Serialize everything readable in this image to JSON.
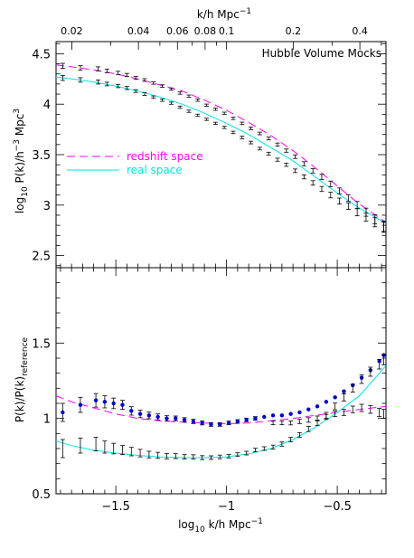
{
  "chart_data": [
    {
      "type": "scatter",
      "panel": "top",
      "title": "Hubble Volume Mocks",
      "xlabel": "log10 k/h Mpc^-1",
      "ylabel": "log10 P(k)/h^-3 Mpc^3",
      "xlim": [
        -1.77,
        -0.28
      ],
      "ylim": [
        2.38,
        4.62
      ],
      "yticks": [
        2.5,
        3,
        3.5,
        4,
        4.5
      ],
      "ytick_labels": [
        "2.5",
        "3",
        "3.5",
        "4",
        "4.5"
      ],
      "top_axis": {
        "label": "k/h Mpc^-1",
        "ticks": [
          0.02,
          0.04,
          0.06,
          0.08,
          0.1,
          0.2,
          0.4
        ],
        "tick_labels": [
          "0.02",
          "0.04",
          "0.06",
          "0.08",
          "0.1",
          "0.2",
          "0.4"
        ]
      },
      "legend": {
        "placement": "middle-left",
        "entries": [
          {
            "label": "redshift space",
            "color": "#ff00ff",
            "style": "dashed"
          },
          {
            "label": "real space",
            "color": "#00e5e5",
            "style": "solid"
          }
        ]
      },
      "series": [
        {
          "name": "redshift space",
          "kind": "model",
          "color": "#ff00ff",
          "x": [
            -1.77,
            -1.7,
            -1.6,
            -1.5,
            -1.4,
            -1.3,
            -1.2,
            -1.1,
            -1.0,
            -0.9,
            -0.8,
            -0.7,
            -0.6,
            -0.5,
            -0.4,
            -0.28
          ],
          "y": [
            4.39,
            4.37,
            4.34,
            4.3,
            4.25,
            4.19,
            4.13,
            4.04,
            3.94,
            3.82,
            3.69,
            3.54,
            3.37,
            3.19,
            3.01,
            2.83
          ]
        },
        {
          "name": "real space",
          "kind": "model",
          "color": "#00e5e5",
          "x": [
            -1.77,
            -1.7,
            -1.6,
            -1.5,
            -1.4,
            -1.3,
            -1.2,
            -1.1,
            -1.0,
            -0.9,
            -0.8,
            -0.7,
            -0.6,
            -0.5,
            -0.4,
            -0.28
          ],
          "y": [
            4.27,
            4.25,
            4.22,
            4.18,
            4.13,
            4.07,
            4.0,
            3.91,
            3.81,
            3.7,
            3.57,
            3.44,
            3.28,
            3.12,
            2.97,
            2.82
          ]
        },
        {
          "name": "mocks redshift space",
          "kind": "errorbars",
          "color": "#000000",
          "x": [
            -1.74,
            -1.66,
            -1.58,
            -1.54,
            -1.49,
            -1.45,
            -1.41,
            -1.37,
            -1.33,
            -1.29,
            -1.25,
            -1.21,
            -1.17,
            -1.13,
            -1.09,
            -1.05,
            -1.01,
            -0.97,
            -0.93,
            -0.89,
            -0.85,
            -0.81,
            -0.77,
            -0.73,
            -0.69,
            -0.65,
            -0.61,
            -0.57,
            -0.53,
            -0.49,
            -0.45,
            -0.41,
            -0.37,
            -0.33,
            -0.29
          ],
          "y": [
            4.38,
            4.36,
            4.35,
            4.33,
            4.31,
            4.29,
            4.26,
            4.24,
            4.21,
            4.18,
            4.15,
            4.11,
            4.08,
            4.04,
            3.99,
            3.95,
            3.91,
            3.86,
            3.81,
            3.76,
            3.71,
            3.66,
            3.6,
            3.54,
            3.48,
            3.41,
            3.34,
            3.28,
            3.21,
            3.14,
            3.07,
            3.0,
            2.93,
            2.86,
            2.79
          ],
          "err": [
            0.025,
            0.022,
            0.02,
            0.018,
            0.016,
            0.015,
            0.014,
            0.013,
            0.012,
            0.012,
            0.011,
            0.011,
            0.011,
            0.011,
            0.011,
            0.011,
            0.011,
            0.012,
            0.012,
            0.013,
            0.013,
            0.014,
            0.015,
            0.016,
            0.018,
            0.02,
            0.022,
            0.025,
            0.028,
            0.03,
            0.033,
            0.036,
            0.04,
            0.045,
            0.05
          ]
        },
        {
          "name": "mocks real space",
          "kind": "errorbars",
          "color": "#000000",
          "x": [
            -1.74,
            -1.66,
            -1.58,
            -1.54,
            -1.49,
            -1.45,
            -1.41,
            -1.37,
            -1.33,
            -1.29,
            -1.25,
            -1.21,
            -1.17,
            -1.13,
            -1.09,
            -1.05,
            -1.01,
            -0.97,
            -0.93,
            -0.89,
            -0.85,
            -0.81,
            -0.77,
            -0.73,
            -0.69,
            -0.65,
            -0.61,
            -0.57,
            -0.53,
            -0.49,
            -0.45,
            -0.41,
            -0.37,
            -0.33,
            -0.29
          ],
          "y": [
            4.26,
            4.24,
            4.22,
            4.2,
            4.18,
            4.16,
            4.13,
            4.1,
            4.07,
            4.04,
            4.01,
            3.97,
            3.93,
            3.89,
            3.85,
            3.81,
            3.77,
            3.72,
            3.67,
            3.62,
            3.56,
            3.51,
            3.45,
            3.4,
            3.34,
            3.28,
            3.22,
            3.16,
            3.1,
            3.04,
            2.99,
            2.93,
            2.88,
            2.83,
            2.78
          ],
          "err": [
            0.025,
            0.022,
            0.02,
            0.018,
            0.016,
            0.015,
            0.014,
            0.013,
            0.012,
            0.012,
            0.011,
            0.011,
            0.011,
            0.011,
            0.011,
            0.011,
            0.011,
            0.012,
            0.012,
            0.013,
            0.013,
            0.014,
            0.015,
            0.016,
            0.018,
            0.02,
            0.022,
            0.025,
            0.028,
            0.03,
            0.033,
            0.036,
            0.04,
            0.045,
            0.05
          ]
        }
      ]
    },
    {
      "type": "scatter",
      "panel": "bottom",
      "xlabel": "log10 k/h Mpc^-1",
      "ylabel": "P(k)/P(k)reference",
      "xlim": [
        -1.77,
        -0.28
      ],
      "ylim": [
        0.5,
        2.0
      ],
      "xticks": [
        -1.5,
        -1,
        -0.5
      ],
      "xtick_labels": [
        "−1.5",
        "−1",
        "−0.5"
      ],
      "yticks": [
        0.5,
        1,
        1.5
      ],
      "ytick_labels": [
        "0.5",
        "1",
        "1.5"
      ],
      "series": [
        {
          "name": "redshift space",
          "kind": "model",
          "color": "#ff00ff",
          "x": [
            -1.77,
            -1.7,
            -1.6,
            -1.5,
            -1.4,
            -1.3,
            -1.2,
            -1.1,
            -1.0,
            -0.9,
            -0.8,
            -0.7,
            -0.6,
            -0.5,
            -0.4,
            -0.28
          ],
          "y": [
            1.15,
            1.11,
            1.07,
            1.03,
            1.0,
            0.985,
            0.975,
            0.97,
            0.965,
            0.97,
            0.985,
            1.0,
            1.02,
            1.04,
            1.06,
            1.08
          ]
        },
        {
          "name": "real space",
          "kind": "model",
          "color": "#00e5e5",
          "x": [
            -1.77,
            -1.7,
            -1.6,
            -1.5,
            -1.4,
            -1.3,
            -1.2,
            -1.1,
            -1.0,
            -0.9,
            -0.8,
            -0.7,
            -0.6,
            -0.5,
            -0.4,
            -0.28
          ],
          "y": [
            0.85,
            0.82,
            0.79,
            0.77,
            0.755,
            0.745,
            0.74,
            0.74,
            0.745,
            0.765,
            0.8,
            0.86,
            0.94,
            1.04,
            1.15,
            1.35
          ]
        },
        {
          "name": "redshift space ratio",
          "kind": "points",
          "color": "#0000cc",
          "x": [
            -1.74,
            -1.66,
            -1.59,
            -1.55,
            -1.51,
            -1.47,
            -1.43,
            -1.39,
            -1.35,
            -1.31,
            -1.27,
            -1.23,
            -1.19,
            -1.15,
            -1.11,
            -1.07,
            -1.03,
            -0.99,
            -0.95,
            -0.91,
            -0.87,
            -0.83,
            -0.79,
            -0.75,
            -0.71,
            -0.67,
            -0.63,
            -0.59,
            -0.55,
            -0.51,
            -0.47,
            -0.43,
            -0.39,
            -0.35,
            -0.31,
            -0.29
          ],
          "y": [
            1.04,
            1.09,
            1.12,
            1.11,
            1.1,
            1.09,
            1.05,
            1.03,
            1.02,
            1.01,
            1.0,
            1.0,
            0.99,
            0.98,
            0.97,
            0.96,
            0.96,
            0.97,
            0.98,
            0.99,
            1.0,
            1.01,
            1.02,
            1.02,
            1.03,
            1.04,
            1.06,
            1.08,
            1.11,
            1.14,
            1.18,
            1.22,
            1.27,
            1.32,
            1.38,
            1.42
          ],
          "err": [
            0.06,
            0.05,
            0.045,
            0.04,
            0.035,
            0.03,
            0.028,
            0.025,
            0.022,
            0.02,
            0.018,
            0.016,
            0.015,
            0.014,
            0.013,
            0.012,
            0.012,
            0.012,
            0.012,
            0.012,
            0.012,
            0.0,
            0.0,
            0.0,
            0.0,
            0.0,
            0.0,
            0.0,
            0.0,
            0.0,
            0.0,
            0.0,
            0.0,
            0.0,
            0.0,
            0.0
          ]
        },
        {
          "name": "redshift space mocks",
          "kind": "errorbars",
          "color": "#000000",
          "x": [
            -0.79,
            -0.75,
            -0.71,
            -0.67,
            -0.63,
            -0.59,
            -0.55,
            -0.51,
            -0.47,
            -0.43,
            -0.39,
            -0.35,
            -0.31,
            -0.29
          ],
          "y": [
            0.97,
            0.97,
            0.97,
            0.98,
            0.99,
            1.0,
            1.01,
            1.03,
            1.04,
            1.06,
            1.07,
            1.06,
            1.04,
            1.03
          ],
          "err": [
            0.012,
            0.012,
            0.013,
            0.014,
            0.015,
            0.016,
            0.017,
            0.018,
            0.02,
            0.022,
            0.024,
            0.026,
            0.028,
            0.03
          ]
        },
        {
          "name": "real space ratio",
          "kind": "errorbars",
          "color": "#000000",
          "x": [
            -1.74,
            -1.66,
            -1.59,
            -1.55,
            -1.51,
            -1.47,
            -1.43,
            -1.39,
            -1.35,
            -1.31,
            -1.27,
            -1.23,
            -1.19,
            -1.15,
            -1.11,
            -1.07,
            -1.03,
            -0.99,
            -0.95,
            -0.91,
            -0.87,
            -0.83,
            -0.79,
            -0.75,
            -0.71,
            -0.67,
            -0.63,
            -0.59,
            -0.55,
            -0.51,
            -0.47,
            -0.43,
            -0.39,
            -0.35,
            -0.31,
            -0.29
          ],
          "y": [
            0.8,
            0.82,
            0.83,
            0.81,
            0.8,
            0.79,
            0.78,
            0.77,
            0.76,
            0.755,
            0.75,
            0.75,
            0.745,
            0.745,
            0.74,
            0.74,
            0.745,
            0.75,
            0.76,
            0.77,
            0.79,
            0.8,
            0.81,
            0.83,
            0.86,
            0.89,
            0.93,
            0.97,
            1.02,
            1.08,
            1.14,
            1.2,
            1.26,
            1.31,
            1.36,
            1.39
          ],
          "err": [
            0.06,
            0.05,
            0.045,
            0.04,
            0.035,
            0.03,
            0.028,
            0.025,
            0.022,
            0.02,
            0.018,
            0.016,
            0.015,
            0.014,
            0.013,
            0.012,
            0.012,
            0.012,
            0.012,
            0.012,
            0.012,
            0.012,
            0.013,
            0.014,
            0.015,
            0.016,
            0.017,
            0.018,
            0.02,
            0.022,
            0.024,
            0.026,
            0.028,
            0.03,
            0.032,
            0.034
          ]
        }
      ]
    }
  ],
  "labels": {
    "top_axis_title": "k/h Mpc",
    "top_axis_title_sup": "−1",
    "top_ylabel_a": "log",
    "top_ylabel_sub": "10",
    "top_ylabel_b": " P(k)/h",
    "top_ylabel_sup1": "−3",
    "top_ylabel_c": " Mpc",
    "top_ylabel_sup2": "3",
    "bottom_ylabel_a": "P(k)/P(k)",
    "bottom_ylabel_sub": "reference",
    "xlabel_a": "log",
    "xlabel_sub": "10",
    "xlabel_b": " k/h Mpc",
    "xlabel_sup": "−1"
  }
}
